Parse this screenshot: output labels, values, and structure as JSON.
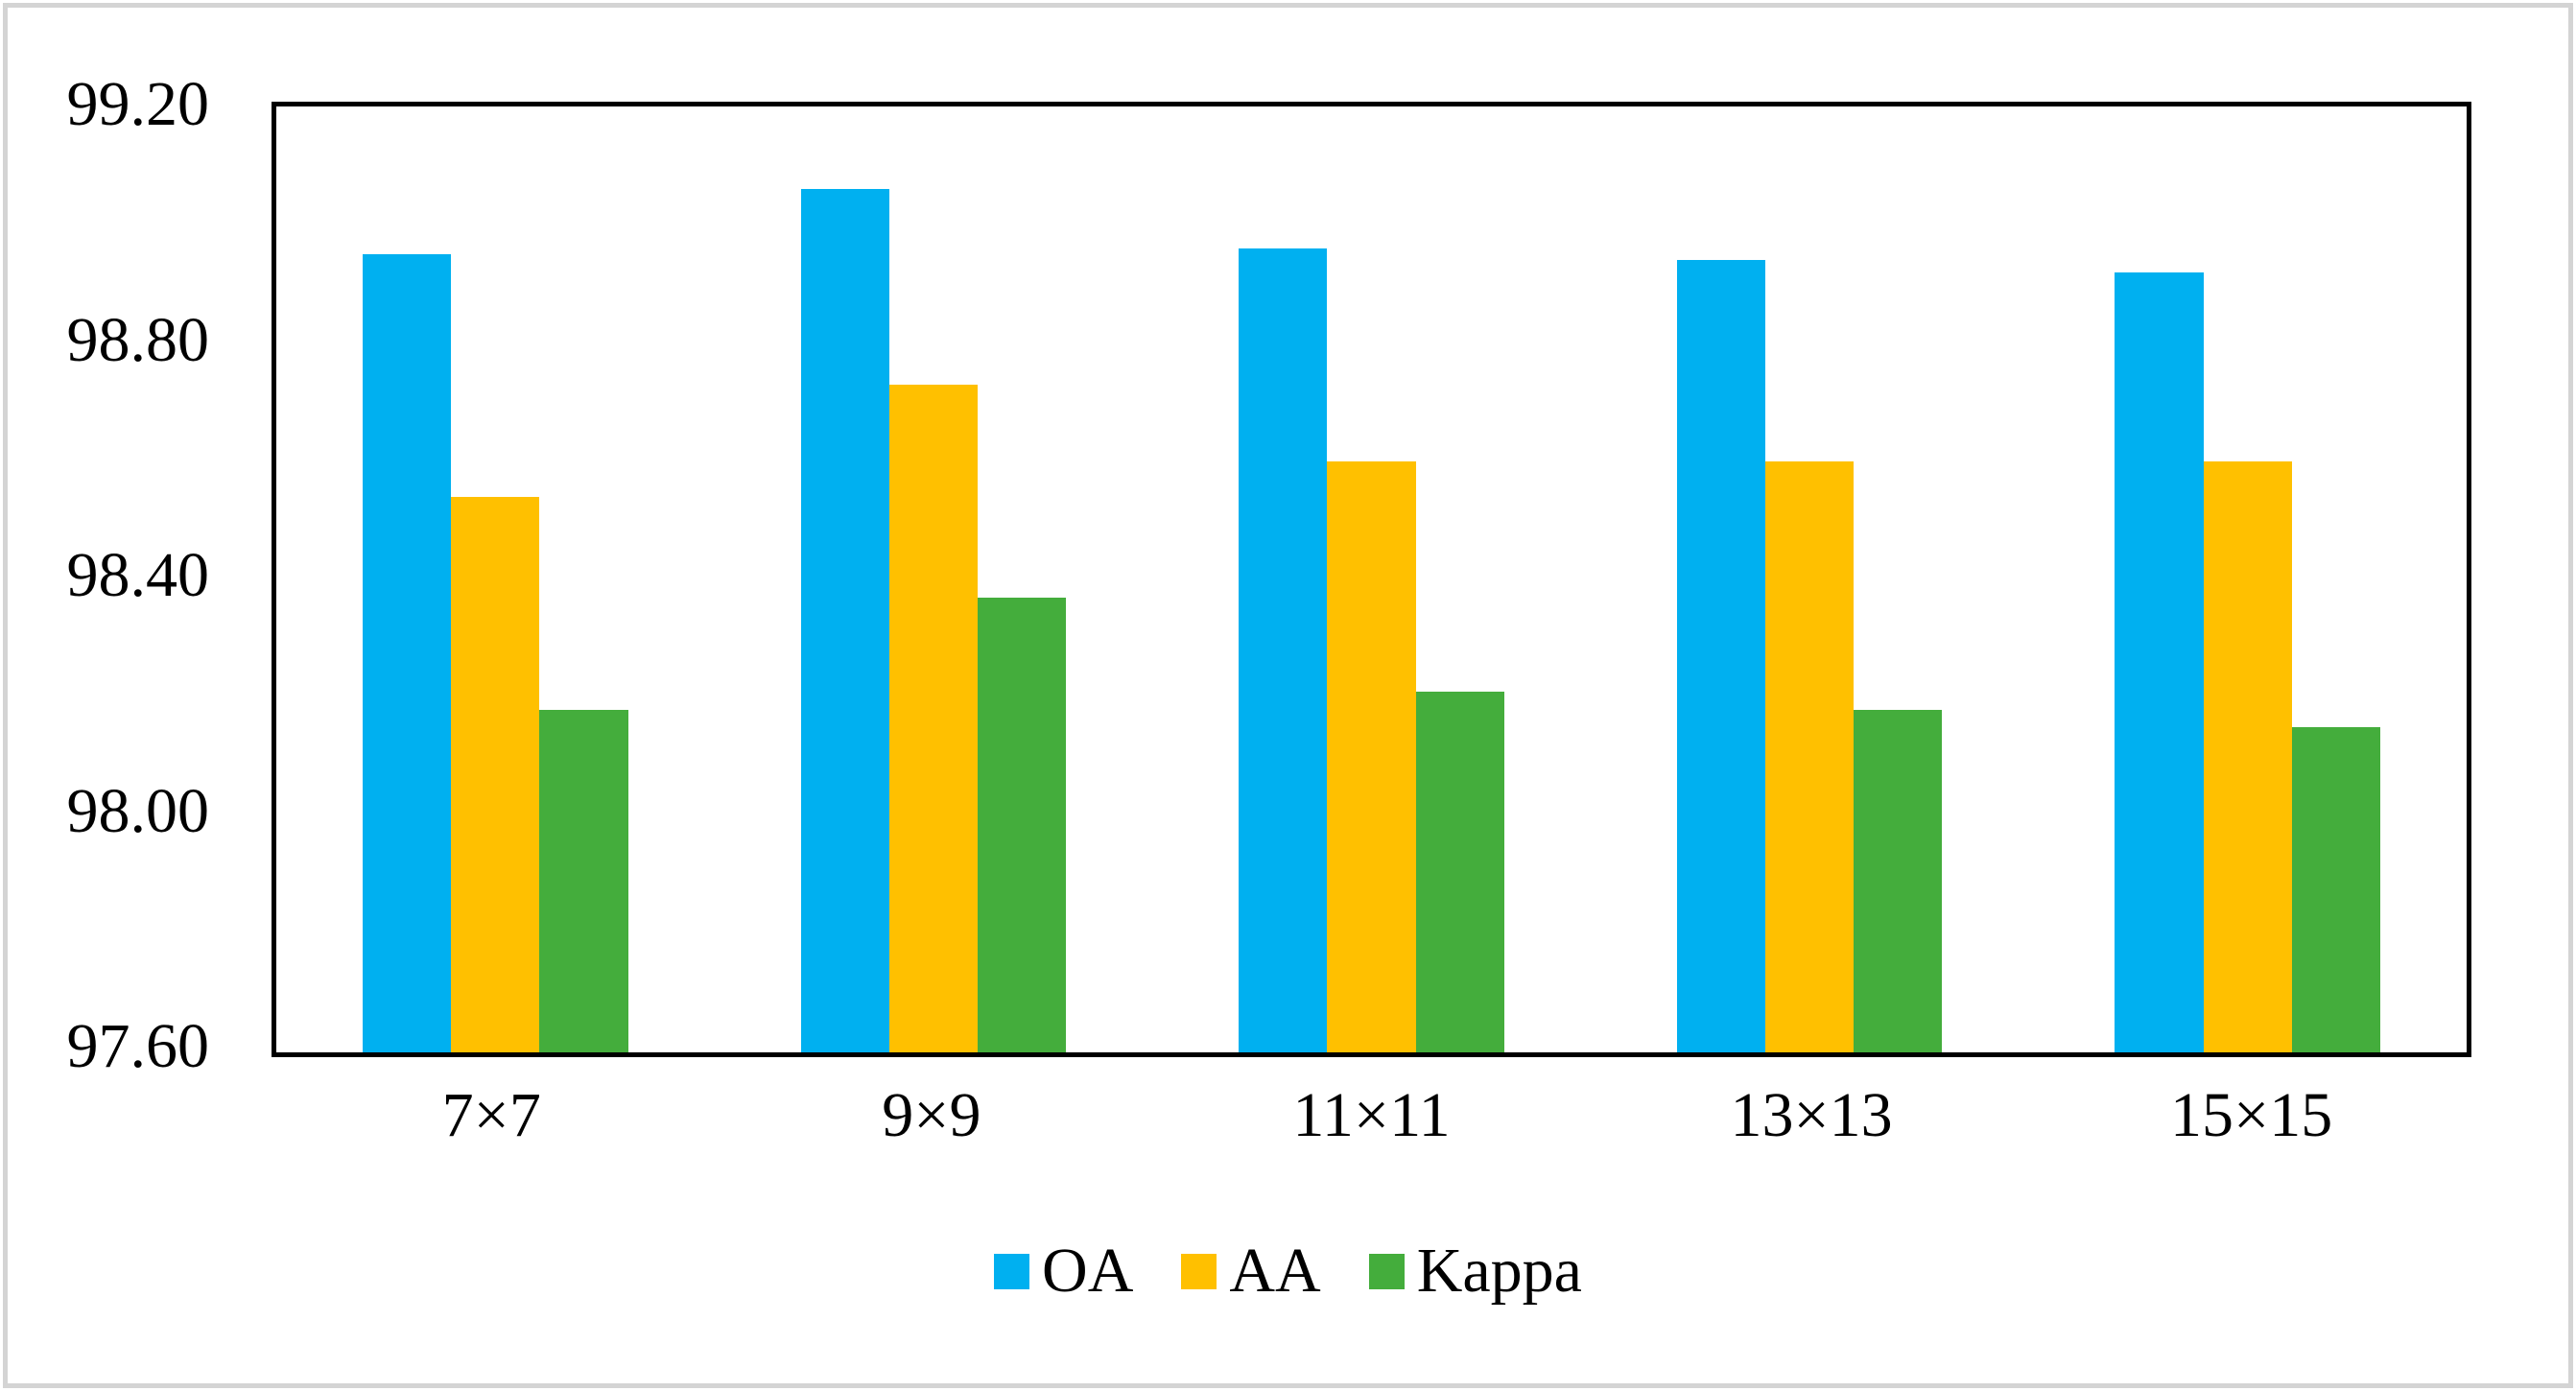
{
  "figure": {
    "background": "#ffffff",
    "frame_color": "#d4d4d4",
    "plot_border_color": "#000000"
  },
  "chart_data": {
    "type": "bar",
    "title": "",
    "xlabel": "",
    "ylabel": "",
    "categories": [
      "7×7",
      "9×9",
      "11×11",
      "13×13",
      "15×15"
    ],
    "series": [
      {
        "name": "OA",
        "color": "#00B0F0",
        "values": [
          98.95,
          99.06,
          98.96,
          98.94,
          98.92
        ]
      },
      {
        "name": "AA",
        "color": "#FFC000",
        "values": [
          98.54,
          98.73,
          98.6,
          98.6,
          98.6
        ]
      },
      {
        "name": "Kappa",
        "color": "#44AD3C",
        "values": [
          98.18,
          98.37,
          98.21,
          98.18,
          98.15
        ]
      }
    ],
    "ylim": [
      97.6,
      99.2
    ],
    "yticks": [
      "99.20",
      "98.80",
      "98.40",
      "98.00",
      "97.60"
    ],
    "grid": false,
    "legend_position": "bottom"
  }
}
